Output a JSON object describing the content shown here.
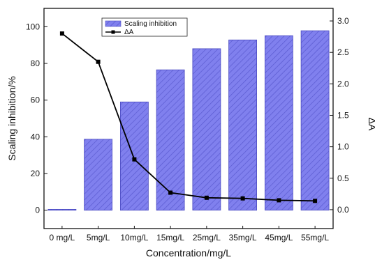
{
  "chart_data": {
    "type": "bar",
    "categories": [
      "0 mg/L",
      "5mg/L",
      "10mg/L",
      "15mg/L",
      "25mg/L",
      "35mg/L",
      "45mg/L",
      "55mg/L"
    ],
    "xlabel": "Concentration/mg/L",
    "ylabel_left": "Scaling inhibition/%",
    "ylabel_right": "ΔA",
    "ylim_left": [
      -10,
      110
    ],
    "ylim_right": [
      -0.3,
      3.2
    ],
    "yticks_left": [
      "0",
      "20",
      "40",
      "60",
      "80",
      "100"
    ],
    "yticks_right": [
      "0.0",
      "0.5",
      "1.0",
      "1.5",
      "2.0",
      "2.5",
      "3.0"
    ],
    "grid": false,
    "legend_position": "top-center",
    "series": [
      {
        "name": "Scaling inhibition",
        "type": "bar",
        "axis": "left",
        "color": "#7b7bea",
        "hatch": "diagonal",
        "values": [
          0.5,
          38.7,
          59.0,
          76.5,
          88.0,
          92.8,
          95.1,
          97.8
        ]
      },
      {
        "name": "ΔA",
        "type": "line",
        "axis": "right",
        "color": "#000000",
        "marker": "square",
        "values": [
          2.8,
          2.35,
          0.8,
          0.27,
          0.19,
          0.18,
          0.15,
          0.14
        ]
      }
    ]
  }
}
